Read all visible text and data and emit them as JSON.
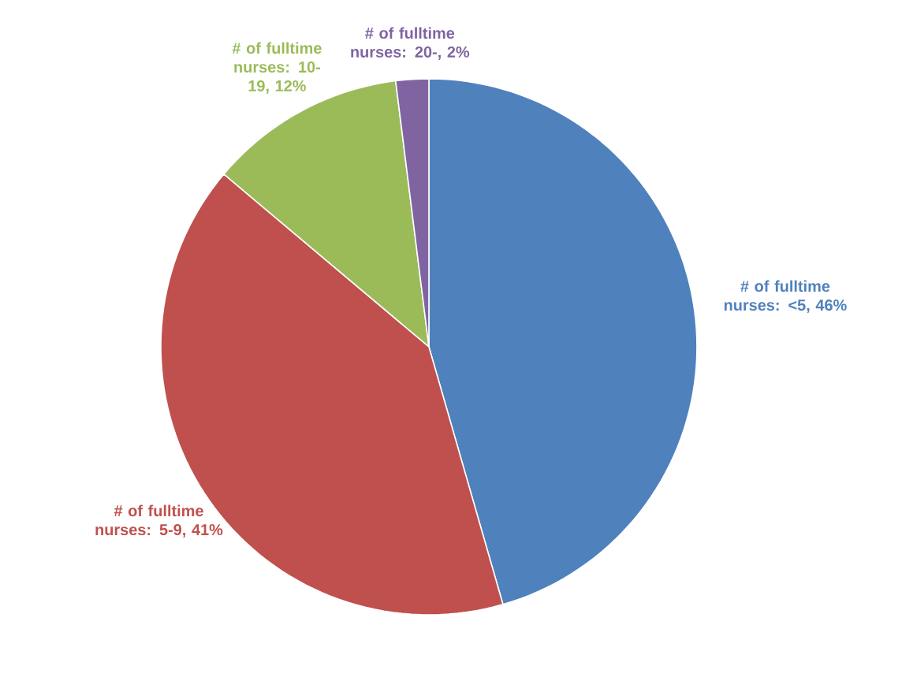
{
  "chart_data": {
    "type": "pie",
    "categories": [
      "# of fulltime nurses: <5",
      "# of fulltime nurses: 5-9",
      "# of fulltime nurses: 10-19",
      "# of fulltime nurses: 20-"
    ],
    "values": [
      46,
      41,
      12,
      2
    ],
    "value_labels": [
      ", 46%",
      ", 41%",
      ", 12%",
      ", 2%"
    ],
    "colors": [
      "#4f81bd",
      "#c0504d",
      "#9bbb59",
      "#8064a2"
    ]
  }
}
